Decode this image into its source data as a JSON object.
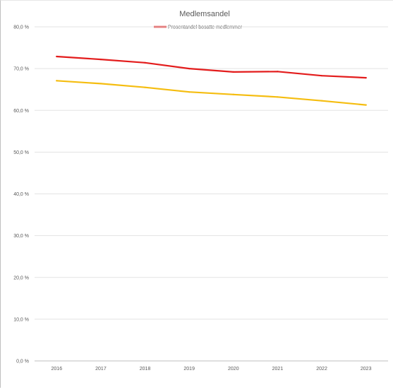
{
  "chart_data": {
    "type": "line",
    "title": "Medlemsandel",
    "xlabel": "",
    "ylabel": "",
    "x": [
      "2016",
      "2017",
      "2018",
      "2019",
      "2020",
      "2021",
      "2022",
      "2023"
    ],
    "ylim": [
      0,
      80
    ],
    "yticks": [
      "0,0 %",
      "10,0 %",
      "20,0 %",
      "30,0 %",
      "40,0 %",
      "50,0 %",
      "60,0 %",
      "70,0 %",
      "80,0 %"
    ],
    "ytick_values": [
      0,
      10,
      20,
      30,
      40,
      50,
      60,
      70,
      80
    ],
    "grid": true,
    "legend_position": "top-center",
    "series": [
      {
        "name": "Prosentandel bosatte medlemmer",
        "color": "#e31c1c",
        "values": [
          72.9,
          72.2,
          71.4,
          70.0,
          69.2,
          69.3,
          68.3,
          67.8
        ]
      },
      {
        "color": "#f5bd10",
        "values": [
          67.1,
          66.4,
          65.5,
          64.4,
          63.8,
          63.2,
          62.3,
          61.3
        ]
      }
    ]
  }
}
